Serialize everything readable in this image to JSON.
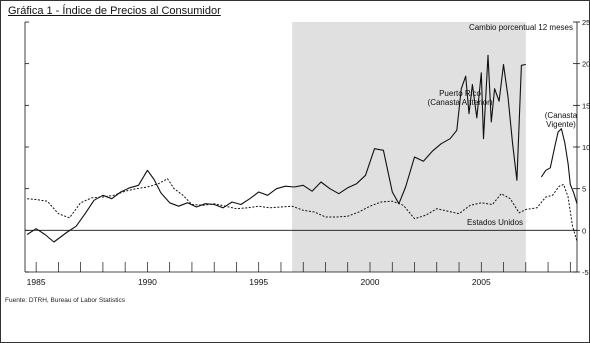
{
  "title": "Gráfica 1 - Índice de Precios al Consumidor",
  "source_note": "Fuente: DTRH, Bureau of Labor Statistics",
  "chart_data": {
    "type": "line",
    "ylabel": "Cambio porcentual 12 meses",
    "xlim": [
      1984.5,
      2009.3
    ],
    "ylim": [
      -5,
      25
    ],
    "x_ticks": [
      1985,
      1990,
      1995,
      2000,
      2005
    ],
    "y_ticks": [
      -5,
      0,
      5,
      10,
      15,
      20,
      25
    ],
    "shaded_region": [
      1996.5,
      2007.0
    ],
    "zero_line": true,
    "series": [
      {
        "name": "Puerto Rico (Canasta Anterior)",
        "style": "solid",
        "points": [
          [
            1984.6,
            -0.5
          ],
          [
            1985.0,
            0.2
          ],
          [
            1985.4,
            -0.5
          ],
          [
            1985.8,
            -1.4
          ],
          [
            1986.1,
            -0.8
          ],
          [
            1986.4,
            -0.2
          ],
          [
            1986.8,
            0.5
          ],
          [
            1987.2,
            2.0
          ],
          [
            1987.6,
            3.6
          ],
          [
            1988.0,
            4.2
          ],
          [
            1988.4,
            3.8
          ],
          [
            1988.8,
            4.6
          ],
          [
            1989.2,
            5.1
          ],
          [
            1989.6,
            5.4
          ],
          [
            1990.0,
            7.2
          ],
          [
            1990.3,
            6.1
          ],
          [
            1990.6,
            4.5
          ],
          [
            1991.0,
            3.3
          ],
          [
            1991.4,
            2.9
          ],
          [
            1991.8,
            3.3
          ],
          [
            1992.2,
            2.8
          ],
          [
            1992.6,
            3.2
          ],
          [
            1993.0,
            3.1
          ],
          [
            1993.4,
            2.7
          ],
          [
            1993.8,
            3.4
          ],
          [
            1994.2,
            3.1
          ],
          [
            1994.6,
            3.8
          ],
          [
            1995.0,
            4.6
          ],
          [
            1995.4,
            4.2
          ],
          [
            1995.8,
            5.0
          ],
          [
            1996.2,
            5.3
          ],
          [
            1996.6,
            5.2
          ],
          [
            1997.0,
            5.4
          ],
          [
            1997.4,
            4.7
          ],
          [
            1997.8,
            5.8
          ],
          [
            1998.2,
            5.0
          ],
          [
            1998.6,
            4.4
          ],
          [
            1999.0,
            5.1
          ],
          [
            1999.4,
            5.6
          ],
          [
            1999.8,
            6.6
          ],
          [
            2000.2,
            9.8
          ],
          [
            2000.6,
            9.6
          ],
          [
            2001.0,
            4.6
          ],
          [
            2001.3,
            3.2
          ],
          [
            2001.6,
            5.2
          ],
          [
            2002.0,
            8.8
          ],
          [
            2002.4,
            8.3
          ],
          [
            2002.8,
            9.5
          ],
          [
            2003.2,
            10.4
          ],
          [
            2003.6,
            11.0
          ],
          [
            2003.9,
            12.0
          ],
          [
            2004.1,
            17.0
          ],
          [
            2004.3,
            18.5
          ],
          [
            2004.45,
            14.0
          ],
          [
            2004.6,
            17.5
          ],
          [
            2004.8,
            13.5
          ],
          [
            2005.0,
            18.9
          ],
          [
            2005.1,
            11.0
          ],
          [
            2005.3,
            21.0
          ],
          [
            2005.45,
            13.0
          ],
          [
            2005.6,
            17.0
          ],
          [
            2005.8,
            15.5
          ],
          [
            2006.0,
            19.9
          ],
          [
            2006.2,
            16.0
          ],
          [
            2006.4,
            10.5
          ],
          [
            2006.6,
            6.0
          ],
          [
            2006.8,
            19.8
          ],
          [
            2007.0,
            19.9
          ]
        ]
      },
      {
        "name": "Puerto Rico (Canasta Vigente)",
        "style": "solid",
        "points": [
          [
            2007.7,
            6.4
          ],
          [
            2007.9,
            7.2
          ],
          [
            2008.1,
            7.5
          ],
          [
            2008.3,
            10.0
          ],
          [
            2008.45,
            11.8
          ],
          [
            2008.6,
            12.2
          ],
          [
            2008.75,
            10.5
          ],
          [
            2008.9,
            8.0
          ],
          [
            2009.0,
            5.5
          ],
          [
            2009.15,
            4.5
          ],
          [
            2009.3,
            3.2
          ]
        ]
      },
      {
        "name": "Estados Unidos",
        "style": "dashed",
        "points": [
          [
            1984.6,
            3.8
          ],
          [
            1985.0,
            3.7
          ],
          [
            1985.5,
            3.5
          ],
          [
            1986.0,
            2.0
          ],
          [
            1986.5,
            1.5
          ],
          [
            1987.0,
            3.3
          ],
          [
            1987.5,
            3.9
          ],
          [
            1988.0,
            4.0
          ],
          [
            1988.5,
            4.2
          ],
          [
            1989.0,
            4.7
          ],
          [
            1989.5,
            5.0
          ],
          [
            1990.0,
            5.2
          ],
          [
            1990.5,
            5.6
          ],
          [
            1990.9,
            6.2
          ],
          [
            1991.2,
            5.0
          ],
          [
            1991.6,
            4.2
          ],
          [
            1992.0,
            3.1
          ],
          [
            1992.5,
            3.0
          ],
          [
            1993.0,
            3.2
          ],
          [
            1993.5,
            2.9
          ],
          [
            1994.0,
            2.6
          ],
          [
            1994.5,
            2.7
          ],
          [
            1995.0,
            2.9
          ],
          [
            1995.5,
            2.7
          ],
          [
            1996.0,
            2.8
          ],
          [
            1996.5,
            2.9
          ],
          [
            1997.0,
            2.4
          ],
          [
            1997.5,
            2.2
          ],
          [
            1998.0,
            1.6
          ],
          [
            1998.5,
            1.6
          ],
          [
            1999.0,
            1.7
          ],
          [
            1999.5,
            2.2
          ],
          [
            2000.0,
            2.9
          ],
          [
            2000.5,
            3.4
          ],
          [
            2001.0,
            3.5
          ],
          [
            2001.5,
            3.0
          ],
          [
            2002.0,
            1.4
          ],
          [
            2002.5,
            1.8
          ],
          [
            2003.0,
            2.6
          ],
          [
            2003.5,
            2.3
          ],
          [
            2004.0,
            2.0
          ],
          [
            2004.5,
            3.0
          ],
          [
            2005.0,
            3.3
          ],
          [
            2005.5,
            3.1
          ],
          [
            2005.9,
            4.4
          ],
          [
            2006.3,
            3.8
          ],
          [
            2006.7,
            2.1
          ],
          [
            2007.0,
            2.5
          ],
          [
            2007.5,
            2.7
          ],
          [
            2007.9,
            4.0
          ],
          [
            2008.2,
            4.2
          ],
          [
            2008.5,
            5.3
          ],
          [
            2008.7,
            5.5
          ],
          [
            2008.9,
            4.0
          ],
          [
            2009.1,
            0.5
          ],
          [
            2009.3,
            -1.3
          ]
        ]
      }
    ],
    "annotations": [
      {
        "target": "Puerto Rico (Canasta Anterior)",
        "lines": [
          "Puerto Rico",
          "(Canasta Anterior)"
        ]
      },
      {
        "target": "Puerto Rico (Canasta Vigente)",
        "lines": [
          "(Canasta",
          "Vigente)"
        ]
      },
      {
        "target": "Estados Unidos",
        "lines": [
          "Estados Unidos"
        ]
      }
    ]
  }
}
